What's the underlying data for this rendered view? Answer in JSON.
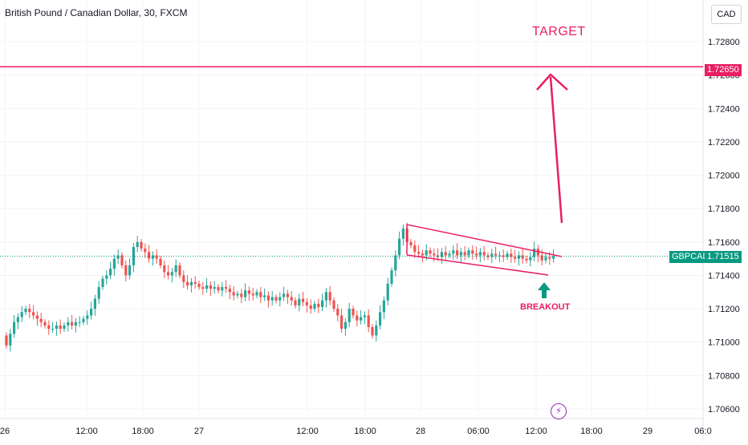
{
  "header": {
    "title": "British Pound / Canadian Dollar, 30, FXCM",
    "currency": "CAD"
  },
  "annotations": {
    "target": "TARGET",
    "breakout": "BREAKOUT",
    "lightning_icon": "lightning-icon"
  },
  "colors": {
    "bull": "#26a69a",
    "bear": "#ef5350",
    "target_line": "#e91e63",
    "pattern": "#e91e63",
    "arrow_breakout": "#089981",
    "last_price": "#089981"
  },
  "chart_data": {
    "type": "candlestick",
    "symbol": "GBPCAD",
    "interval": "30",
    "ylim": [
      1.7055,
      1.7295
    ],
    "y_ticks": [
      "1.72800",
      "1.72600",
      "1.72400",
      "1.72200",
      "1.72000",
      "1.71800",
      "1.71600",
      "1.71400",
      "1.71200",
      "1.71000",
      "1.70800",
      "1.70600"
    ],
    "x_ticks": [
      "26",
      "12:00",
      "18:00",
      "27",
      "12:00",
      "18:00",
      "28",
      "06:00",
      "12:00",
      "18:00",
      "29",
      "06:0"
    ],
    "target_level": 1.7265,
    "target_label": "1.72650",
    "last_price": 1.71515,
    "last_price_label": "1.71515",
    "last_price_symbol": "GBPCAD",
    "close_path": [
      1.7098,
      1.7105,
      1.7112,
      1.7115,
      1.7118,
      1.712,
      1.7118,
      1.7116,
      1.7114,
      1.7112,
      1.711,
      1.7108,
      1.7108,
      1.711,
      1.7108,
      1.711,
      1.7112,
      1.711,
      1.7112,
      1.7112,
      1.7114,
      1.7116,
      1.712,
      1.7126,
      1.7133,
      1.7138,
      1.714,
      1.7144,
      1.715,
      1.7152,
      1.7146,
      1.714,
      1.7146,
      1.7157,
      1.716,
      1.7156,
      1.7154,
      1.715,
      1.7152,
      1.715,
      1.7146,
      1.7142,
      1.714,
      1.7142,
      1.7146,
      1.714,
      1.7136,
      1.7134,
      1.7136,
      1.7135,
      1.7133,
      1.7132,
      1.7134,
      1.7132,
      1.7133,
      1.7131,
      1.7133,
      1.7132,
      1.713,
      1.7128,
      1.7129,
      1.7127,
      1.7131,
      1.7129,
      1.7128,
      1.713,
      1.7127,
      1.7128,
      1.7125,
      1.7127,
      1.7125,
      1.7127,
      1.7129,
      1.7127,
      1.7125,
      1.7122,
      1.7126,
      1.7124,
      1.7122,
      1.712,
      1.7123,
      1.7121,
      1.7125,
      1.713,
      1.7125,
      1.712,
      1.7116,
      1.7108,
      1.7112,
      1.712,
      1.7116,
      1.7113,
      1.7115,
      1.7116,
      1.7109,
      1.7104,
      1.711,
      1.7118,
      1.7125,
      1.7135,
      1.7143,
      1.7152,
      1.7162,
      1.7168,
      1.716,
      1.7158,
      1.7154,
      1.7153,
      1.7152,
      1.7155,
      1.7153,
      1.7152,
      1.7151,
      1.7154,
      1.7152,
      1.7153,
      1.7155,
      1.7152,
      1.7154,
      1.7152,
      1.7155,
      1.7153,
      1.7152,
      1.7154,
      1.7152,
      1.7151,
      1.7153,
      1.7152,
      1.7152,
      1.7151,
      1.7153,
      1.7151,
      1.715,
      1.7152,
      1.715,
      1.7149,
      1.7151,
      1.7156,
      1.7152,
      1.7149,
      1.7151,
      1.715,
      1.71515
    ]
  }
}
